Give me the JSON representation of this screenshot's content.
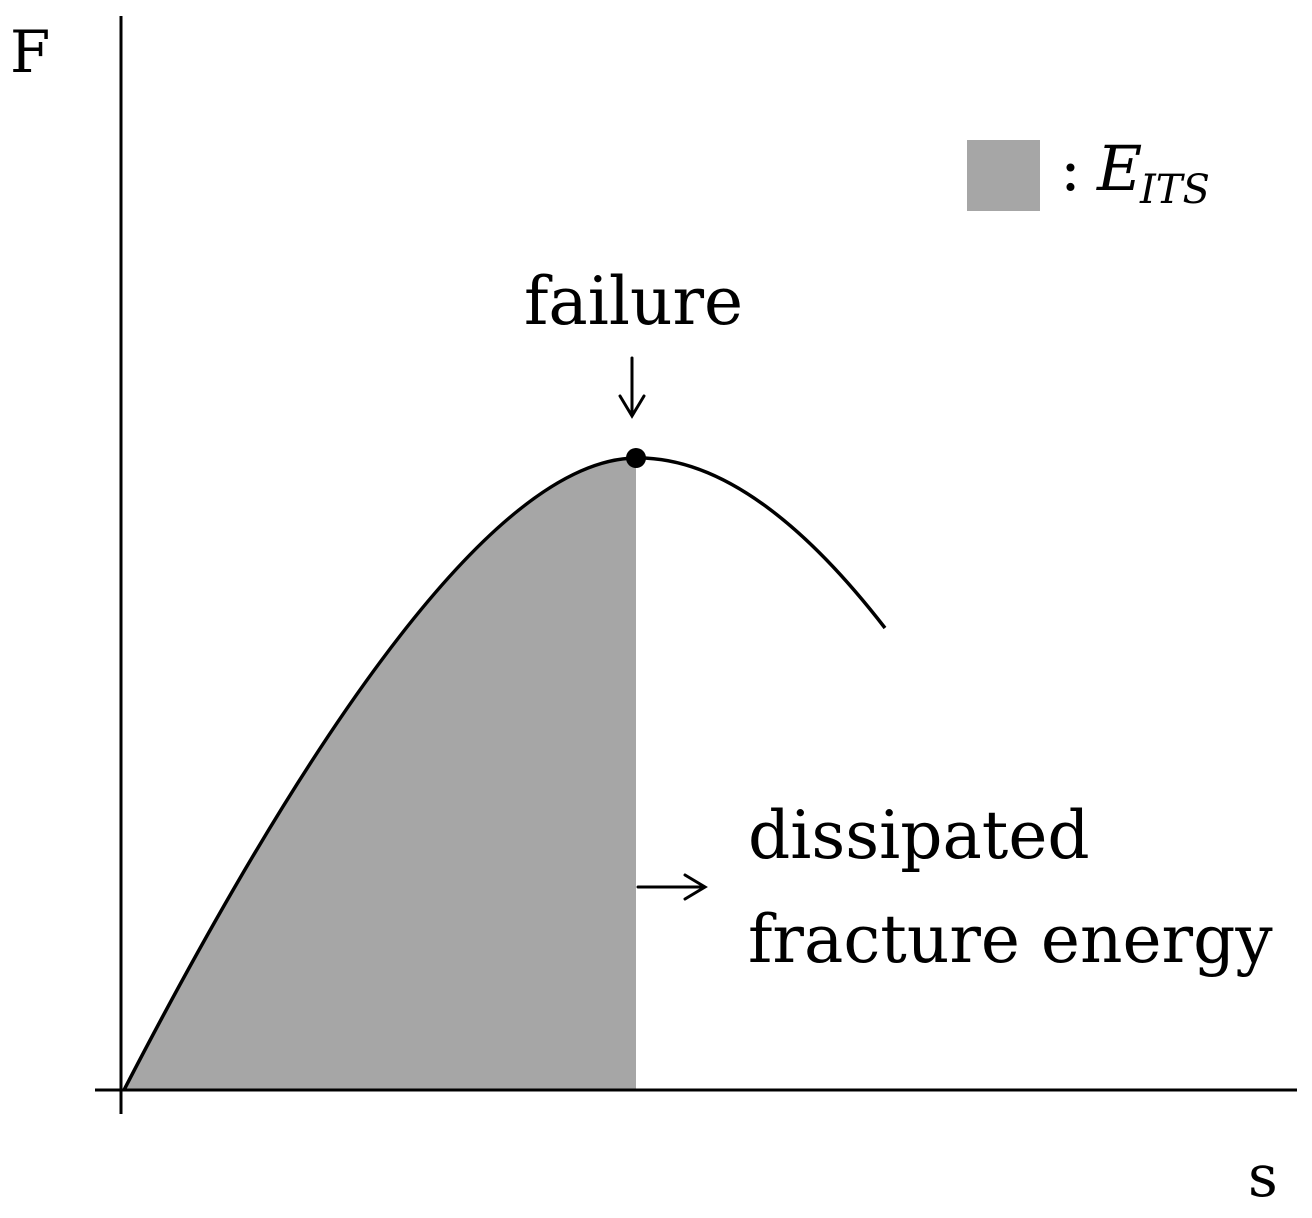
{
  "diagram": {
    "y_axis_label": "F",
    "x_axis_label": "s",
    "legend": {
      "colon": ":",
      "symbol": "E",
      "subscript": "ITS",
      "swatch_color": "#a6a6a6"
    },
    "failure_label": "failure",
    "region_label_line1": "dissipated",
    "region_label_line2": "fracture energy",
    "curve_color": "#000000",
    "fill_color": "#a6a6a6"
  }
}
